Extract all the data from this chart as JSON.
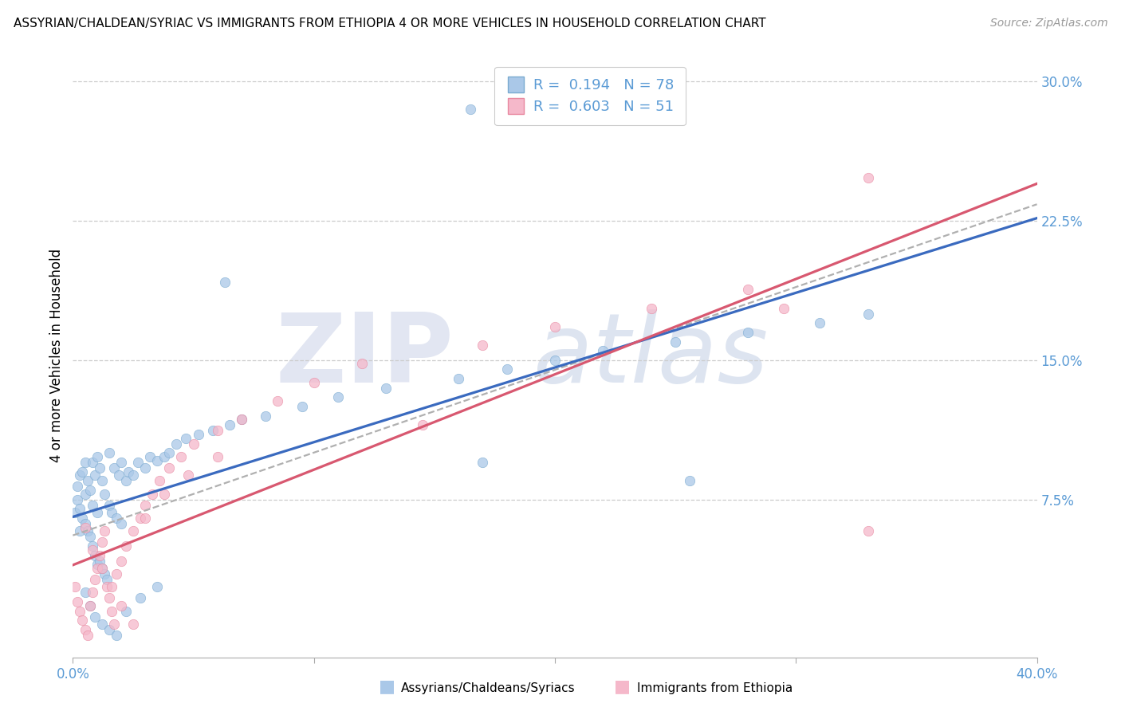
{
  "title": "ASSYRIAN/CHALDEAN/SYRIAC VS IMMIGRANTS FROM ETHIOPIA 4 OR MORE VEHICLES IN HOUSEHOLD CORRELATION CHART",
  "source": "Source: ZipAtlas.com",
  "xlabel_blue": "Assyrians/Chaldeans/Syriacs",
  "xlabel_pink": "Immigrants from Ethiopia",
  "ylabel": "4 or more Vehicles in Household",
  "xlim": [
    0.0,
    0.4
  ],
  "ylim": [
    -0.01,
    0.315
  ],
  "yticks": [
    0.075,
    0.15,
    0.225,
    0.3
  ],
  "ytick_labels": [
    "7.5%",
    "15.0%",
    "22.5%",
    "30.0%"
  ],
  "blue_R": 0.194,
  "blue_N": 78,
  "pink_R": 0.603,
  "pink_N": 51,
  "blue_color": "#aac8e8",
  "pink_color": "#f5b8ca",
  "blue_edge_color": "#7aaad0",
  "pink_edge_color": "#e888a0",
  "blue_line_color": "#3a6abf",
  "pink_line_color": "#d85870",
  "dash_line_color": "#b0b0b0",
  "axis_tick_color": "#5b9bd5",
  "grid_color": "#cccccc",
  "title_fontsize": 11,
  "source_fontsize": 10,
  "tick_fontsize": 12,
  "legend_fontsize": 13,
  "blue_scatter": {
    "x": [
      0.001,
      0.002,
      0.002,
      0.003,
      0.003,
      0.003,
      0.004,
      0.004,
      0.005,
      0.005,
      0.005,
      0.006,
      0.006,
      0.007,
      0.007,
      0.008,
      0.008,
      0.008,
      0.009,
      0.009,
      0.01,
      0.01,
      0.01,
      0.011,
      0.011,
      0.012,
      0.012,
      0.013,
      0.013,
      0.014,
      0.015,
      0.015,
      0.016,
      0.017,
      0.018,
      0.019,
      0.02,
      0.02,
      0.022,
      0.023,
      0.025,
      0.027,
      0.03,
      0.032,
      0.035,
      0.038,
      0.04,
      0.043,
      0.047,
      0.052,
      0.058,
      0.065,
      0.07,
      0.08,
      0.095,
      0.11,
      0.13,
      0.16,
      0.18,
      0.2,
      0.22,
      0.25,
      0.28,
      0.31,
      0.33,
      0.005,
      0.007,
      0.009,
      0.012,
      0.015,
      0.018,
      0.022,
      0.028,
      0.035,
      0.165,
      0.063,
      0.256,
      0.17
    ],
    "y": [
      0.068,
      0.075,
      0.082,
      0.058,
      0.07,
      0.088,
      0.065,
      0.09,
      0.062,
      0.078,
      0.095,
      0.058,
      0.085,
      0.055,
      0.08,
      0.05,
      0.072,
      0.095,
      0.045,
      0.088,
      0.04,
      0.068,
      0.098,
      0.042,
      0.092,
      0.038,
      0.085,
      0.035,
      0.078,
      0.032,
      0.072,
      0.1,
      0.068,
      0.092,
      0.065,
      0.088,
      0.062,
      0.095,
      0.085,
      0.09,
      0.088,
      0.095,
      0.092,
      0.098,
      0.096,
      0.098,
      0.1,
      0.105,
      0.108,
      0.11,
      0.112,
      0.115,
      0.118,
      0.12,
      0.125,
      0.13,
      0.135,
      0.14,
      0.145,
      0.15,
      0.155,
      0.16,
      0.165,
      0.17,
      0.175,
      0.025,
      0.018,
      0.012,
      0.008,
      0.005,
      0.002,
      0.015,
      0.022,
      0.028,
      0.285,
      0.192,
      0.085,
      0.095
    ]
  },
  "pink_scatter": {
    "x": [
      0.001,
      0.002,
      0.003,
      0.004,
      0.005,
      0.006,
      0.007,
      0.008,
      0.009,
      0.01,
      0.011,
      0.012,
      0.013,
      0.014,
      0.015,
      0.016,
      0.017,
      0.018,
      0.02,
      0.022,
      0.025,
      0.028,
      0.03,
      0.033,
      0.036,
      0.04,
      0.045,
      0.05,
      0.06,
      0.07,
      0.085,
      0.1,
      0.12,
      0.145,
      0.17,
      0.2,
      0.24,
      0.28,
      0.005,
      0.008,
      0.012,
      0.016,
      0.02,
      0.025,
      0.03,
      0.038,
      0.048,
      0.06,
      0.33,
      0.295,
      0.33
    ],
    "y": [
      0.028,
      0.02,
      0.015,
      0.01,
      0.005,
      0.002,
      0.018,
      0.025,
      0.032,
      0.038,
      0.045,
      0.052,
      0.058,
      0.028,
      0.022,
      0.015,
      0.008,
      0.035,
      0.042,
      0.05,
      0.058,
      0.065,
      0.072,
      0.078,
      0.085,
      0.092,
      0.098,
      0.105,
      0.112,
      0.118,
      0.128,
      0.138,
      0.148,
      0.115,
      0.158,
      0.168,
      0.178,
      0.188,
      0.06,
      0.048,
      0.038,
      0.028,
      0.018,
      0.008,
      0.065,
      0.078,
      0.088,
      0.098,
      0.248,
      0.178,
      0.058
    ]
  }
}
